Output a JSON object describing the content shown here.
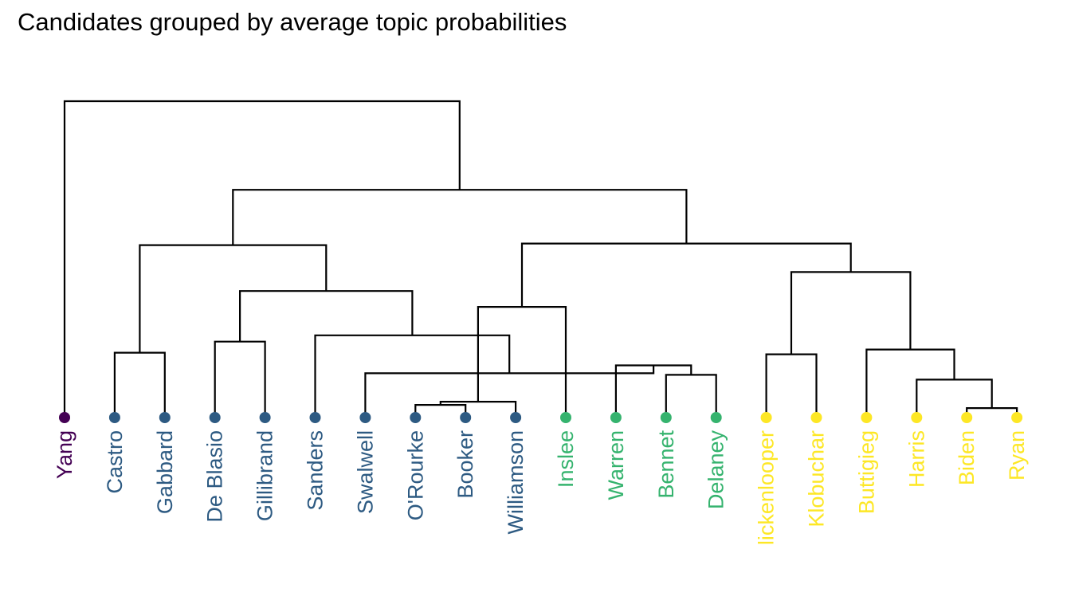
{
  "chart_data": {
    "type": "dendrogram",
    "title": "Candidates grouped by average topic probabilities",
    "orientation": "vertical",
    "leaves": [
      {
        "label": "Yang",
        "group": 1
      },
      {
        "label": "Castro",
        "group": 2
      },
      {
        "label": "Gabbard",
        "group": 2
      },
      {
        "label": "De Blasio",
        "group": 2
      },
      {
        "label": "Gillibrand",
        "group": 2
      },
      {
        "label": "Sanders",
        "group": 2
      },
      {
        "label": "Swalwell",
        "group": 2
      },
      {
        "label": "O'Rourke",
        "group": 2
      },
      {
        "label": "Booker",
        "group": 2
      },
      {
        "label": "Williamson",
        "group": 2
      },
      {
        "label": "Inslee",
        "group": 3
      },
      {
        "label": "Warren",
        "group": 3
      },
      {
        "label": "Bennet",
        "group": 3
      },
      {
        "label": "Delaney",
        "group": 3
      },
      {
        "label": "lickenlooper",
        "group": 4
      },
      {
        "label": "Klobuchar",
        "group": 4
      },
      {
        "label": "Buttigieg",
        "group": 4
      },
      {
        "label": "Harris",
        "group": 4
      },
      {
        "label": "Biden",
        "group": 4
      },
      {
        "label": "Ryan",
        "group": 4
      }
    ],
    "group_colors": {
      "1": "#440154",
      "2": "#2d5a82",
      "3": "#35b36e",
      "4": "#fde725"
    },
    "merges": [
      {
        "a": 18,
        "b": 19,
        "height": 0.03
      },
      {
        "a": 7,
        "b": 8,
        "height": 0.04
      },
      {
        "a": 12,
        "b": 13,
        "height": 0.135
      },
      {
        "a": 21,
        "b": 9,
        "height": 0.05
      },
      {
        "a": 11,
        "b": 22,
        "height": 0.165
      },
      {
        "a": 17,
        "b": 20,
        "height": 0.12
      },
      {
        "a": 6,
        "b": 24,
        "height": 0.14
      },
      {
        "a": 16,
        "b": 25,
        "height": 0.215
      },
      {
        "a": 14,
        "b": 15,
        "height": 0.2
      },
      {
        "a": 5,
        "b": 26,
        "height": 0.26
      },
      {
        "a": 3,
        "b": 4,
        "height": 0.24
      },
      {
        "a": 1,
        "b": 2,
        "height": 0.205
      },
      {
        "a": 28,
        "b": 27,
        "height": 0.46
      },
      {
        "a": 10,
        "b": 23,
        "height": 0.35
      },
      {
        "a": 30,
        "b": 29,
        "height": 0.4
      },
      {
        "a": 33,
        "b": 32,
        "height": 0.55
      },
      {
        "a": 31,
        "b": 34,
        "height": 0.545
      },
      {
        "a": 36,
        "b": 35,
        "height": 0.72
      },
      {
        "a": 0,
        "b": 37,
        "height": 1.0
      }
    ]
  }
}
